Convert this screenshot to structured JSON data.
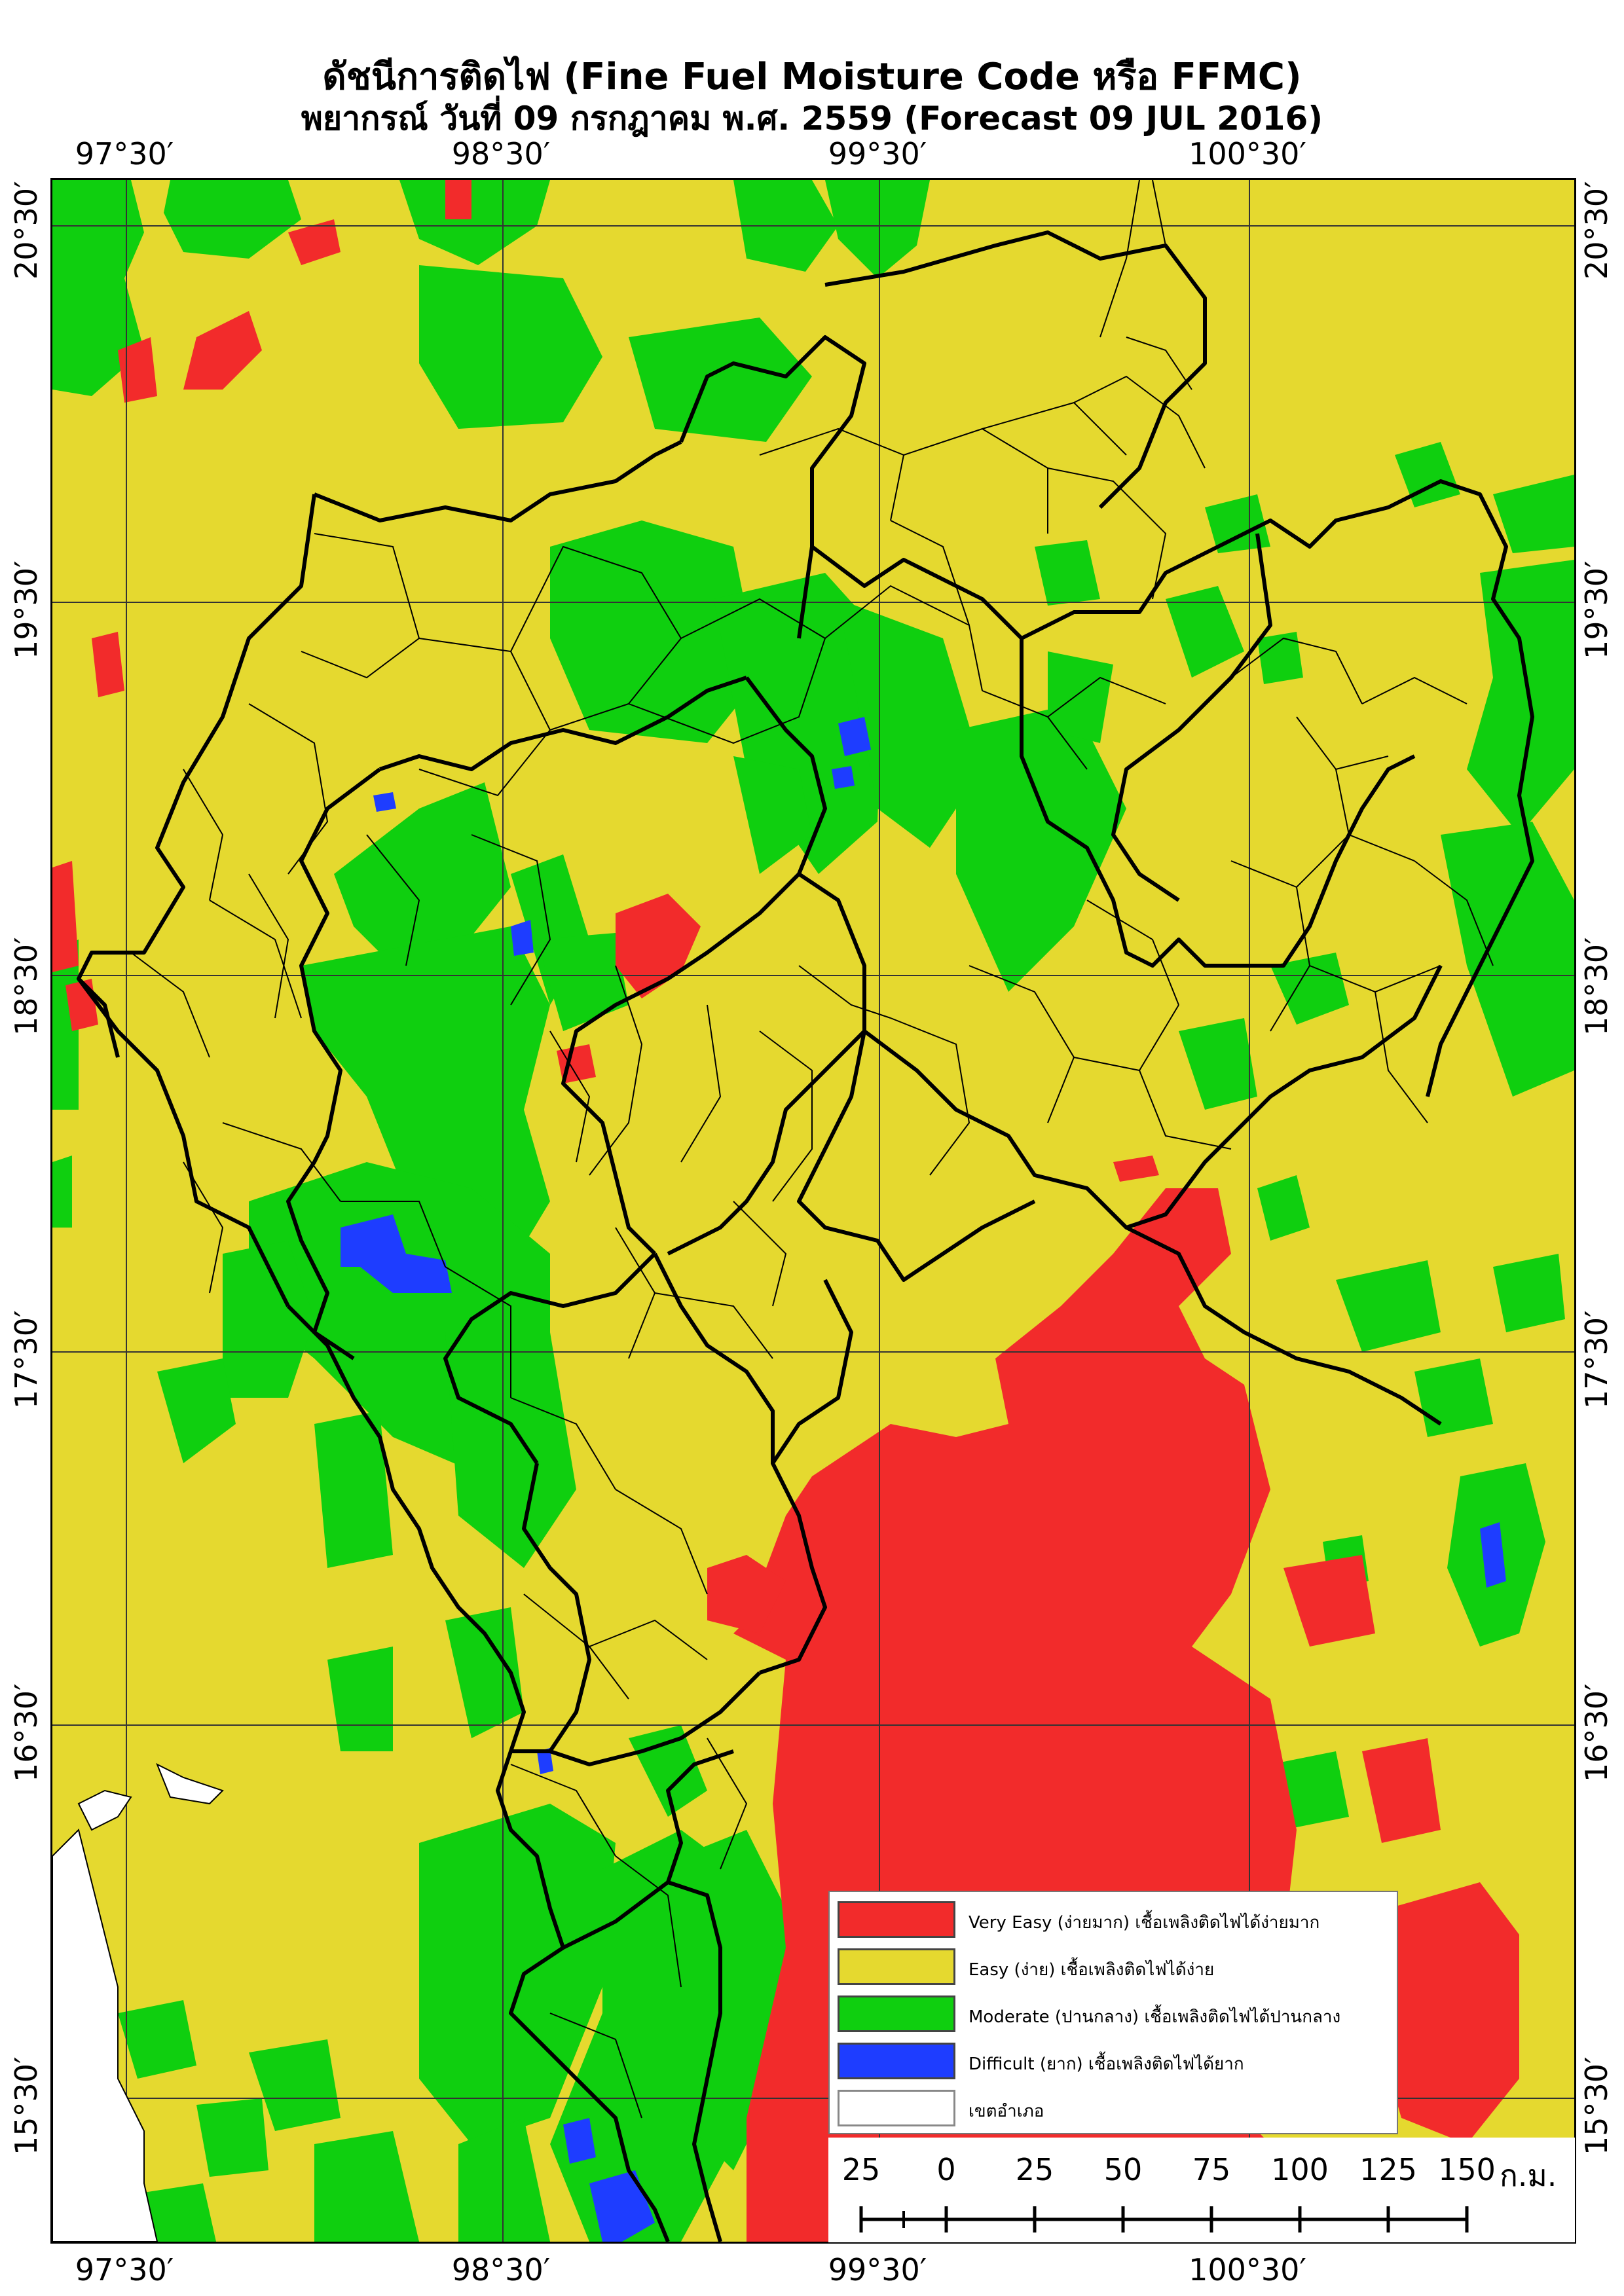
{
  "title": {
    "line1": "ดัชนีการติดไฟ (Fine Fuel Moisture Code หรือ FFMC)",
    "line2": "พยากรณ์ วันที่ 09 กรกฎาคม พ.ศ. 2559 (Forecast 09 JUL 2016)"
  },
  "longitude_labels": [
    "97°30′",
    "98°30′",
    "99°30′",
    "100°30′"
  ],
  "latitude_labels": [
    "20°30′",
    "19°30′",
    "18°30′",
    "17°30′",
    "16°30′",
    "15°30′"
  ],
  "legend": {
    "items": [
      {
        "label": "Very Easy (ง่ายมาก) เชื้อเพลิงติดไฟได้ง่ายมาก",
        "color": "#f22b2b"
      },
      {
        "label": "Easy (ง่าย) เชื้อเพลิงติดไฟได้ง่าย",
        "color": "#e5d92f"
      },
      {
        "label": "Moderate (ปานกลาง) เชื้อเพลิงติดไฟได้ปานกลาง",
        "color": "#0fcf0f"
      },
      {
        "label": "Difficult (ยาก) เชื้อเพลิงติดไฟได้ยาก",
        "color": "#1e3dff"
      },
      {
        "label": "เขตอำเภอ",
        "color": "#ffffff"
      }
    ]
  },
  "scale_bar": {
    "ticks": [
      "25",
      "0",
      "25",
      "50",
      "75",
      "100",
      "125",
      "150"
    ],
    "unit": "ก.ม."
  }
}
